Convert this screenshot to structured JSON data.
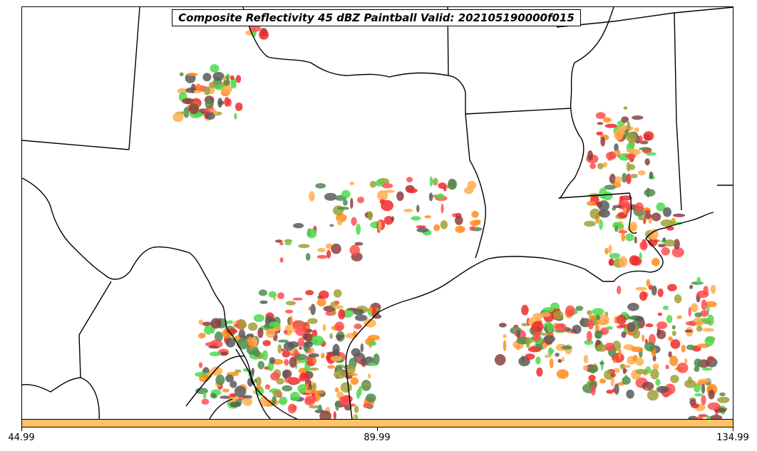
{
  "title": "Composite Reflectivity 45 dBZ Paintball Valid: 202105190000f015",
  "colorbar": {
    "color": "#ffc266",
    "tick_labels": [
      "44.99",
      "89.99",
      "134.99"
    ],
    "range": [
      44.99,
      134.99
    ]
  },
  "palette": [
    "#ff4d4d",
    "#ff8c1a",
    "#ffad4d",
    "#4dd94d",
    "#8c4040",
    "#a0a03a",
    "#4d8c4d",
    "#5a5a5a",
    "#ee2a2a"
  ]
}
